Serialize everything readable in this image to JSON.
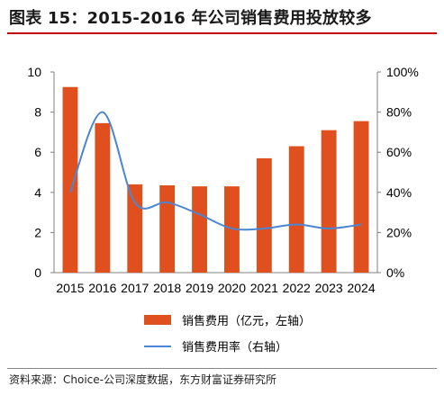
{
  "header": {
    "title": "图表 15：2015-2016 年公司销售费用投放较多"
  },
  "footer": {
    "source": "资料来源：Choice-公司深度数据，东方财富证券研究所"
  },
  "chart_data": {
    "type": "bar",
    "title": "图表 15：2015-2016 年公司销售费用投放较多",
    "categories": [
      "2015",
      "2016",
      "2017",
      "2018",
      "2019",
      "2020",
      "2021",
      "2022",
      "2023",
      "2024"
    ],
    "series": [
      {
        "name": "销售费用（亿元，左轴）",
        "type": "bar",
        "axis": "left",
        "color": "#E0501E",
        "values": [
          9.25,
          7.45,
          4.4,
          4.35,
          4.3,
          4.3,
          5.7,
          6.3,
          7.1,
          7.55
        ]
      },
      {
        "name": "销售费用率（右轴）",
        "type": "line",
        "axis": "right",
        "color": "#4A86D4",
        "values": [
          40,
          80,
          35,
          35,
          29,
          22,
          22,
          24,
          22,
          24
        ]
      }
    ],
    "ylim_left": [
      0,
      10
    ],
    "yticks_left": [
      "0",
      "2",
      "4",
      "6",
      "8",
      "10"
    ],
    "ylim_right": [
      0,
      100
    ],
    "yticks_right": [
      "0%",
      "20%",
      "40%",
      "60%",
      "80%",
      "100%"
    ],
    "grid": false,
    "legend_position": "bottom"
  }
}
